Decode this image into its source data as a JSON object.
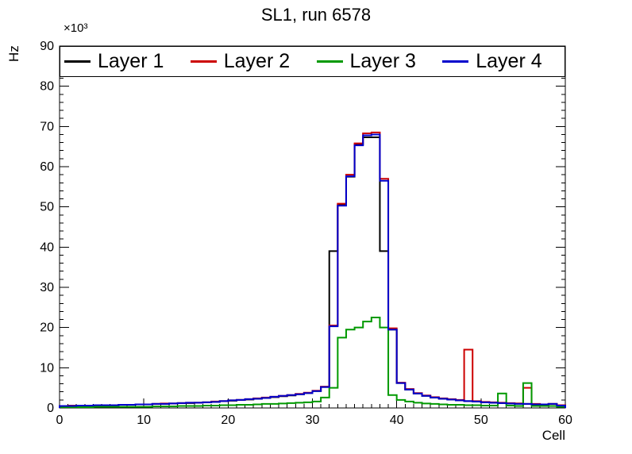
{
  "title": "SL1, run 6578",
  "chart_data": {
    "type": "line",
    "subtype": "step-histogram",
    "title": "SL1, run 6578",
    "xlabel": "Cell",
    "ylabel": "Hz",
    "y_scale_label": "×10³",
    "xlim": [
      0,
      60
    ],
    "ylim": [
      0,
      90
    ],
    "x_major_tick_step": 10,
    "x_minor_tick_step": 1,
    "y_major_tick_step": 10,
    "y_minor_tick_step": 2,
    "bin_width": 1,
    "grid": false,
    "legend_position": "top-inside-full-width",
    "series": [
      {
        "name": "Layer 1",
        "color": "#000000",
        "values": [
          0.5,
          0.5,
          0.6,
          0.6,
          0.6,
          0.7,
          0.7,
          0.8,
          0.8,
          0.9,
          0.9,
          1.0,
          1.0,
          1.1,
          1.2,
          1.2,
          1.3,
          1.4,
          1.5,
          1.7,
          1.8,
          2.0,
          2.1,
          2.3,
          2.5,
          2.7,
          2.9,
          3.1,
          3.4,
          3.7,
          4.2,
          5.2,
          39.0,
          50.5,
          57.5,
          65.5,
          67.3,
          67.3,
          39.0,
          19.5,
          6.2,
          4.6,
          3.6,
          3.0,
          2.6,
          2.3,
          2.1,
          1.9,
          1.7,
          1.6,
          1.4,
          1.3,
          1.2,
          1.1,
          1.1,
          1.0,
          0.9,
          0.9,
          1.0,
          0.6
        ]
      },
      {
        "name": "Layer 2",
        "color": "#cc0000",
        "values": [
          0.5,
          0.6,
          0.6,
          0.6,
          0.7,
          0.7,
          0.7,
          0.8,
          0.8,
          0.9,
          0.9,
          1.0,
          1.1,
          1.1,
          1.2,
          1.3,
          1.3,
          1.4,
          1.6,
          1.7,
          1.9,
          2.0,
          2.2,
          2.4,
          2.6,
          2.8,
          3.0,
          3.2,
          3.5,
          3.8,
          4.3,
          5.3,
          20.5,
          50.8,
          58.0,
          65.8,
          68.3,
          68.5,
          57.0,
          19.8,
          6.3,
          4.7,
          3.7,
          3.1,
          2.7,
          2.4,
          2.2,
          2.0,
          14.5,
          1.7,
          1.5,
          1.4,
          1.3,
          1.2,
          1.1,
          5.0,
          1.0,
          0.9,
          1.0,
          0.7
        ]
      },
      {
        "name": "Layer 3",
        "color": "#009900",
        "values": [
          0.2,
          0.2,
          0.2,
          0.2,
          0.3,
          0.3,
          0.3,
          0.3,
          0.3,
          0.3,
          0.3,
          0.4,
          0.4,
          0.4,
          0.5,
          0.5,
          0.5,
          0.6,
          0.6,
          0.7,
          0.7,
          0.8,
          0.8,
          0.9,
          1.0,
          1.0,
          1.1,
          1.2,
          1.3,
          1.4,
          1.6,
          2.6,
          5.0,
          17.5,
          19.5,
          20.0,
          21.5,
          22.5,
          20.0,
          3.2,
          2.0,
          1.6,
          1.3,
          1.1,
          1.0,
          0.9,
          0.8,
          0.8,
          0.7,
          0.7,
          0.6,
          0.6,
          3.6,
          0.6,
          0.5,
          6.2,
          0.5,
          0.5,
          0.5,
          0.3
        ]
      },
      {
        "name": "Layer 4",
        "color": "#0000cc",
        "values": [
          0.5,
          0.5,
          0.6,
          0.6,
          0.7,
          0.7,
          0.7,
          0.8,
          0.8,
          0.9,
          0.9,
          1.0,
          1.0,
          1.1,
          1.2,
          1.3,
          1.3,
          1.4,
          1.5,
          1.7,
          1.9,
          2.0,
          2.2,
          2.3,
          2.5,
          2.8,
          3.0,
          3.2,
          3.4,
          3.7,
          4.2,
          5.2,
          20.3,
          50.3,
          57.6,
          65.3,
          67.8,
          68.0,
          56.5,
          19.5,
          6.2,
          4.6,
          3.6,
          3.0,
          2.6,
          2.3,
          2.1,
          1.9,
          1.7,
          1.6,
          1.4,
          1.3,
          1.2,
          1.1,
          1.0,
          1.0,
          0.9,
          0.9,
          1.0,
          0.6
        ]
      }
    ]
  }
}
